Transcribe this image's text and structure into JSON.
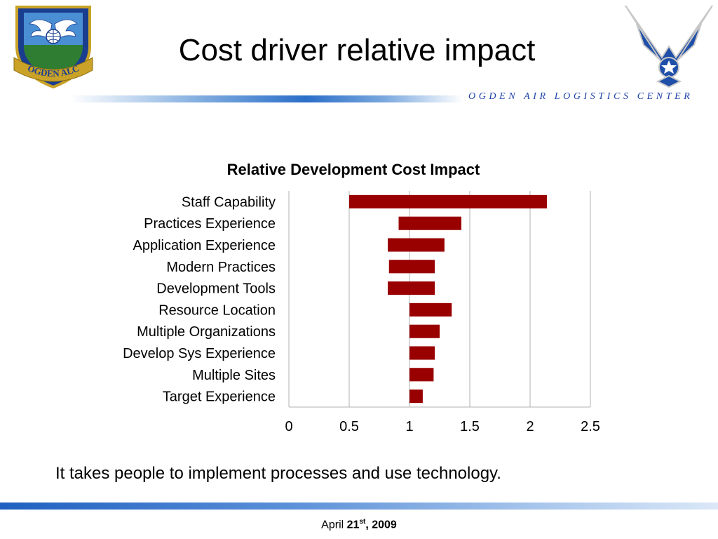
{
  "slide": {
    "title": "Cost driver relative impact",
    "organization": "OGDEN AIR LOGISTICS CENTER",
    "caption": "It takes people to implement processes and use technology.",
    "date": {
      "month": "April",
      "day": "21",
      "suffix": "st",
      "year": ", 2009"
    }
  },
  "logos": {
    "left": {
      "icon": "ogden-alc-shield-logo",
      "text": "OGDEN ALC"
    },
    "right": {
      "icon": "air-force-wings-logo"
    }
  },
  "colors": {
    "bar": "#990000",
    "accent_blue": "#2244aa",
    "grid": "#b0b0b0"
  },
  "chart_data": {
    "type": "bar",
    "orientation": "horizontal",
    "style": "floating-range",
    "title": "Relative Development Cost Impact",
    "categories": [
      "Staff Capability",
      "Practices Experience",
      "Application Experience",
      "Modern Practices",
      "Development Tools",
      "Resource Location",
      "Multiple Organizations",
      "Develop Sys Experience",
      "Multiple Sites",
      "Target Experience"
    ],
    "ranges": [
      [
        0.5,
        2.14
      ],
      [
        0.91,
        1.43
      ],
      [
        0.82,
        1.29
      ],
      [
        0.83,
        1.21
      ],
      [
        0.82,
        1.21
      ],
      [
        1.0,
        1.35
      ],
      [
        1.0,
        1.25
      ],
      [
        1.0,
        1.21
      ],
      [
        1.0,
        1.2
      ],
      [
        1.0,
        1.11
      ]
    ],
    "xlim": [
      0,
      2.5
    ],
    "xticks": [
      0,
      0.5,
      1,
      1.5,
      2,
      2.5
    ],
    "xtick_labels": [
      "0",
      "0.5",
      "1",
      "1.5",
      "2",
      "2.5"
    ],
    "grid": true,
    "legend": false
  }
}
